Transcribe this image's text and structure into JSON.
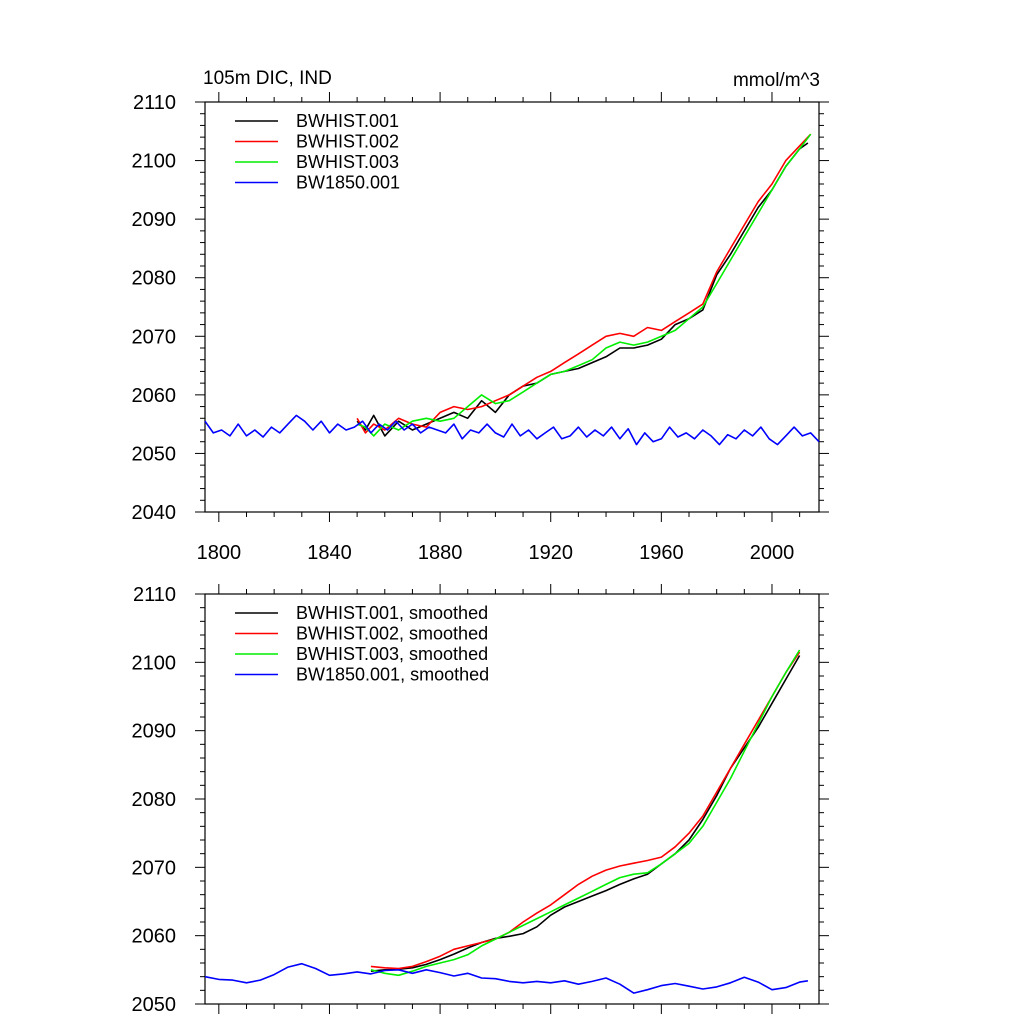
{
  "chart_data": [
    {
      "type": "line",
      "title_left": "105m DIC, IND",
      "title_right": "mmol/m^3",
      "xlim": [
        1795,
        2017
      ],
      "ylim": [
        2040,
        2110
      ],
      "y_ticks": [
        "2040",
        "2050",
        "2060",
        "2070",
        "2080",
        "2090",
        "2100",
        "2110"
      ],
      "x_ticks": [
        "1800",
        "1840",
        "1880",
        "1920",
        "1960",
        "2000"
      ],
      "legend_position": "top-left",
      "series": [
        {
          "name": "BWHIST.001",
          "color": "#000000",
          "x": [
            1850,
            1853,
            1856,
            1860,
            1865,
            1870,
            1875,
            1880,
            1885,
            1890,
            1895,
            1900,
            1905,
            1910,
            1915,
            1920,
            1925,
            1930,
            1935,
            1940,
            1945,
            1950,
            1955,
            1960,
            1965,
            1970,
            1975,
            1980,
            1985,
            1990,
            1995,
            2000,
            2005,
            2010,
            2013
          ],
          "y": [
            2055.5,
            2054,
            2056.5,
            2053,
            2055.5,
            2054,
            2055,
            2056,
            2057,
            2056,
            2059,
            2057,
            2060,
            2061.5,
            2062,
            2063.5,
            2064,
            2064.5,
            2065.5,
            2066.5,
            2068,
            2068,
            2068.5,
            2069.5,
            2072,
            2073,
            2074.5,
            2080.5,
            2084,
            2088,
            2092,
            2095,
            2099,
            2102,
            2103
          ]
        },
        {
          "name": "BWHIST.002",
          "color": "#ff0000",
          "x": [
            1850,
            1853,
            1856,
            1860,
            1865,
            1870,
            1875,
            1880,
            1885,
            1890,
            1895,
            1900,
            1905,
            1910,
            1915,
            1920,
            1925,
            1930,
            1935,
            1940,
            1945,
            1950,
            1955,
            1960,
            1965,
            1970,
            1975,
            1980,
            1985,
            1990,
            1995,
            2000,
            2005,
            2010,
            2014
          ],
          "y": [
            2056,
            2053.5,
            2055,
            2054,
            2056,
            2055,
            2054.5,
            2057,
            2058,
            2057.5,
            2058,
            2059,
            2060,
            2061.5,
            2063,
            2064,
            2065.5,
            2067,
            2068.5,
            2070,
            2070.5,
            2070,
            2071.5,
            2071,
            2072.5,
            2074,
            2075.5,
            2081,
            2085,
            2089,
            2093,
            2096,
            2100,
            2102.5,
            2104.5
          ]
        },
        {
          "name": "BWHIST.003",
          "color": "#00ee00",
          "x": [
            1850,
            1853,
            1856,
            1860,
            1865,
            1870,
            1875,
            1880,
            1885,
            1890,
            1895,
            1900,
            1905,
            1910,
            1915,
            1920,
            1925,
            1930,
            1935,
            1940,
            1945,
            1950,
            1955,
            1960,
            1965,
            1970,
            1975,
            1980,
            1985,
            1990,
            1995,
            2000,
            2005,
            2010,
            2014
          ],
          "y": [
            2055,
            2054.5,
            2053,
            2055,
            2054,
            2055.5,
            2056,
            2055.5,
            2056,
            2058,
            2060,
            2058.5,
            2059,
            2060.5,
            2062,
            2063.5,
            2064,
            2065,
            2066,
            2068,
            2069,
            2068.5,
            2069,
            2070,
            2071,
            2073,
            2075,
            2079,
            2083,
            2087,
            2091,
            2095,
            2099,
            2102,
            2104.5
          ]
        },
        {
          "name": "BW1850.001",
          "color": "#0000ff",
          "x": [
            1795,
            1798,
            1801,
            1804,
            1807,
            1810,
            1813,
            1816,
            1819,
            1822,
            1825,
            1828,
            1831,
            1834,
            1837,
            1840,
            1843,
            1846,
            1849,
            1852,
            1855,
            1858,
            1861,
            1864,
            1867,
            1870,
            1873,
            1876,
            1879,
            1882,
            1885,
            1888,
            1891,
            1894,
            1897,
            1900,
            1903,
            1906,
            1909,
            1912,
            1915,
            1918,
            1921,
            1924,
            1927,
            1930,
            1933,
            1936,
            1939,
            1942,
            1945,
            1948,
            1951,
            1954,
            1957,
            1960,
            1963,
            1966,
            1969,
            1972,
            1975,
            1978,
            1981,
            1984,
            1987,
            1990,
            1993,
            1996,
            1999,
            2002,
            2005,
            2008,
            2011,
            2014,
            2017
          ],
          "y": [
            2055.5,
            2053.5,
            2054,
            2053,
            2055,
            2053,
            2054,
            2052.8,
            2054.5,
            2053.5,
            2055,
            2056.5,
            2055.5,
            2054,
            2055.5,
            2053.5,
            2055,
            2054,
            2054.5,
            2055.5,
            2053.5,
            2055,
            2054,
            2055.5,
            2054,
            2055,
            2053.5,
            2054.5,
            2054,
            2053.5,
            2055,
            2052.5,
            2054,
            2053.5,
            2055,
            2053.5,
            2052.8,
            2055,
            2053,
            2054,
            2052.5,
            2053.5,
            2054.5,
            2052.5,
            2053,
            2054.5,
            2052.8,
            2054,
            2053,
            2054.5,
            2052.5,
            2054.2,
            2051.5,
            2053.5,
            2052,
            2052.5,
            2054.5,
            2052.8,
            2053.5,
            2052.5,
            2054,
            2053,
            2051.5,
            2053.2,
            2052.5,
            2054,
            2053,
            2054.5,
            2052.5,
            2051.5,
            2053,
            2054.5,
            2053,
            2053.5,
            2052
          ]
        }
      ]
    },
    {
      "type": "line",
      "xlim": [
        1795,
        2017
      ],
      "ylim": [
        2050,
        2110
      ],
      "y_ticks": [
        "2050",
        "2060",
        "2070",
        "2080",
        "2090",
        "2100",
        "2110"
      ],
      "legend_position": "top-left",
      "series": [
        {
          "name": "BWHIST.001, smoothed",
          "color": "#000000",
          "x": [
            1855,
            1860,
            1865,
            1870,
            1875,
            1880,
            1885,
            1890,
            1895,
            1900,
            1905,
            1910,
            1915,
            1920,
            1925,
            1930,
            1935,
            1940,
            1945,
            1950,
            1955,
            1960,
            1965,
            1970,
            1975,
            1980,
            1985,
            1990,
            1995,
            2000,
            2005,
            2010
          ],
          "y": [
            2054.8,
            2055,
            2055.1,
            2055.3,
            2055.8,
            2056.5,
            2057.3,
            2058.2,
            2059,
            2059.6,
            2059.9,
            2060.3,
            2061.3,
            2063,
            2064.2,
            2065,
            2065.8,
            2066.6,
            2067.5,
            2068.3,
            2069,
            2070.5,
            2072,
            2074,
            2077,
            2080.5,
            2084.5,
            2087.5,
            2090.5,
            2094,
            2097.5,
            2101
          ]
        },
        {
          "name": "BWHIST.002, smoothed",
          "color": "#ff0000",
          "x": [
            1855,
            1860,
            1865,
            1870,
            1875,
            1880,
            1885,
            1890,
            1895,
            1900,
            1905,
            1910,
            1915,
            1920,
            1925,
            1930,
            1935,
            1940,
            1945,
            1950,
            1955,
            1960,
            1965,
            1970,
            1975,
            1980,
            1985,
            1990,
            1995,
            2000,
            2005,
            2010
          ],
          "y": [
            2055.5,
            2055.3,
            2055.2,
            2055.5,
            2056.2,
            2057,
            2058,
            2058.5,
            2059,
            2059.5,
            2060.5,
            2062,
            2063.3,
            2064.5,
            2066,
            2067.5,
            2068.7,
            2069.6,
            2070.2,
            2070.6,
            2071,
            2071.5,
            2073,
            2075,
            2077.5,
            2081,
            2084.5,
            2088,
            2091.5,
            2095,
            2098.5,
            2101.5
          ]
        },
        {
          "name": "BWHIST.003, smoothed",
          "color": "#00ee00",
          "x": [
            1855,
            1860,
            1865,
            1870,
            1875,
            1880,
            1885,
            1890,
            1895,
            1900,
            1905,
            1910,
            1915,
            1920,
            1925,
            1930,
            1935,
            1940,
            1945,
            1950,
            1955,
            1960,
            1965,
            1970,
            1975,
            1980,
            1985,
            1990,
            1995,
            2000,
            2005,
            2010
          ],
          "y": [
            2055,
            2054.5,
            2054.2,
            2054.8,
            2055.5,
            2056,
            2056.5,
            2057.2,
            2058.5,
            2059.5,
            2060.5,
            2061.5,
            2062.5,
            2063.5,
            2064.5,
            2065.5,
            2066.5,
            2067.5,
            2068.5,
            2069,
            2069.2,
            2070.5,
            2072,
            2073.5,
            2076,
            2079.5,
            2083,
            2087,
            2091,
            2095,
            2098.5,
            2101.8
          ]
        },
        {
          "name": "BW1850.001, smoothed",
          "color": "#0000ff",
          "x": [
            1795,
            1800,
            1805,
            1810,
            1815,
            1820,
            1825,
            1830,
            1835,
            1840,
            1845,
            1850,
            1855,
            1860,
            1865,
            1870,
            1875,
            1880,
            1885,
            1890,
            1895,
            1900,
            1905,
            1910,
            1915,
            1920,
            1925,
            1930,
            1935,
            1940,
            1945,
            1950,
            1955,
            1960,
            1965,
            1970,
            1975,
            1980,
            1985,
            1990,
            1995,
            2000,
            2005,
            2010,
            2013
          ],
          "y": [
            2054,
            2053.6,
            2053.5,
            2053.1,
            2053.5,
            2054.3,
            2055.4,
            2055.9,
            2055.2,
            2054.2,
            2054.4,
            2054.7,
            2054.4,
            2054.9,
            2055,
            2054.5,
            2055,
            2054.6,
            2054.1,
            2054.5,
            2053.8,
            2053.7,
            2053.3,
            2053.1,
            2053.3,
            2053.1,
            2053.4,
            2052.9,
            2053.3,
            2053.8,
            2052.9,
            2051.6,
            2052.1,
            2052.7,
            2053,
            2052.6,
            2052.2,
            2052.5,
            2053.1,
            2053.9,
            2053.2,
            2052.1,
            2052.4,
            2053.2,
            2053.4
          ]
        }
      ]
    }
  ]
}
